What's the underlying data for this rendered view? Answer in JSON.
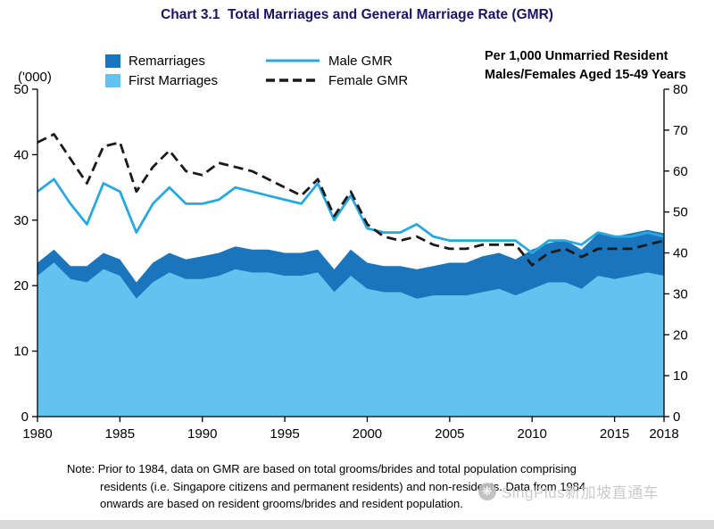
{
  "title": "Chart 3.1  Total Marriages and General Marriage Rate (GMR)",
  "legend": {
    "left_axis_unit": "('000)",
    "remarriages": "Remarriages",
    "first_marriages": "First Marriages",
    "male_gmr": "Male GMR",
    "female_gmr": "Female GMR",
    "right_axis_note_line1": "Per 1,000 Unmarried Resident",
    "right_axis_note_line2": "Males/Females Aged 15-49 Years"
  },
  "note": {
    "label": "Note:",
    "line1": "Prior to 1984, data on GMR are based on total grooms/brides and total population comprising",
    "line2": "residents (i.e. Singapore citizens and permanent residents) and non-residents. Data from 1984",
    "line3": "onwards are based on resident grooms/brides and resident population."
  },
  "watermark": "SingPlus新加坡直通车",
  "colors": {
    "title_text": "#1B1464",
    "first_marriages_area": "#63C2EE",
    "remarriages_area": "#1B75BC",
    "male_gmr_line": "#29A8DF",
    "female_gmr_line": "#1A1A1A",
    "footer_strip": "#D9D9D9",
    "watermark_gray": "#C6C6C6"
  },
  "chart_data": {
    "type": "area",
    "title": "Chart 3.1  Total Marriages and General Marriage Rate (GMR)",
    "x": [
      1980,
      1981,
      1982,
      1983,
      1984,
      1985,
      1986,
      1987,
      1988,
      1989,
      1990,
      1991,
      1992,
      1993,
      1994,
      1995,
      1996,
      1997,
      1998,
      1999,
      2000,
      2001,
      2002,
      2003,
      2004,
      2005,
      2006,
      2007,
      2008,
      2009,
      2010,
      2011,
      2012,
      2013,
      2014,
      2015,
      2016,
      2017,
      2018
    ],
    "x_ticks": [
      1980,
      1985,
      1990,
      1995,
      2000,
      2005,
      2010,
      2015,
      2018
    ],
    "left_axis": {
      "label": "('000)",
      "min": 0,
      "max": 50,
      "step": 10
    },
    "right_axis": {
      "label": "Per 1,000 Unmarried Resident Males/Females Aged 15-49 Years",
      "min": 0,
      "max": 80,
      "step": 10
    },
    "grid": false,
    "legend_position": "top",
    "series": [
      {
        "name": "First Marriages",
        "type": "area",
        "axis": "left",
        "color": "#63C2EE",
        "values": [
          21.5,
          23.5,
          21.0,
          20.5,
          22.5,
          21.5,
          18.0,
          20.5,
          22.0,
          21.0,
          21.0,
          21.5,
          22.5,
          22.0,
          22.0,
          21.5,
          21.5,
          22.0,
          19.0,
          21.5,
          19.5,
          19.0,
          19.0,
          18.0,
          18.5,
          18.5,
          18.5,
          19.0,
          19.5,
          18.5,
          19.5,
          20.5,
          20.5,
          19.5,
          21.5,
          21.0,
          21.5,
          22.0,
          21.5
        ]
      },
      {
        "name": "Remarriages",
        "type": "area",
        "axis": "left",
        "color": "#1B75BC",
        "values": [
          2.0,
          2.0,
          2.0,
          2.5,
          2.5,
          2.5,
          2.5,
          3.0,
          3.0,
          3.0,
          3.5,
          3.5,
          3.5,
          3.5,
          3.5,
          3.5,
          3.5,
          3.5,
          3.5,
          4.0,
          4.0,
          4.0,
          4.0,
          4.5,
          4.5,
          5.0,
          5.0,
          5.5,
          5.5,
          5.5,
          6.0,
          6.0,
          6.5,
          6.0,
          6.5,
          6.5,
          6.5,
          6.5,
          6.5
        ]
      },
      {
        "name": "Male GMR",
        "type": "line",
        "axis": "right",
        "dashed": false,
        "color": "#29A8DF",
        "values": [
          55,
          58,
          52,
          47,
          57,
          55,
          45,
          52,
          56,
          52,
          52,
          53,
          56,
          55,
          54,
          53,
          52,
          57,
          48,
          54,
          46,
          45,
          45,
          47,
          44,
          43,
          43,
          43,
          43,
          43,
          40,
          43,
          43,
          42,
          45,
          44,
          44,
          45,
          44
        ]
      },
      {
        "name": "Female GMR",
        "type": "line",
        "axis": "right",
        "dashed": true,
        "color": "#1A1A1A",
        "values": [
          67,
          69,
          63,
          57,
          66,
          67,
          55,
          61,
          65,
          60,
          59,
          62,
          61,
          60,
          58,
          56,
          54,
          58,
          49,
          55,
          47,
          44,
          43,
          44,
          42,
          41,
          41,
          42,
          42,
          42,
          37,
          40,
          41,
          39,
          41,
          41,
          41,
          42,
          43
        ]
      }
    ]
  }
}
